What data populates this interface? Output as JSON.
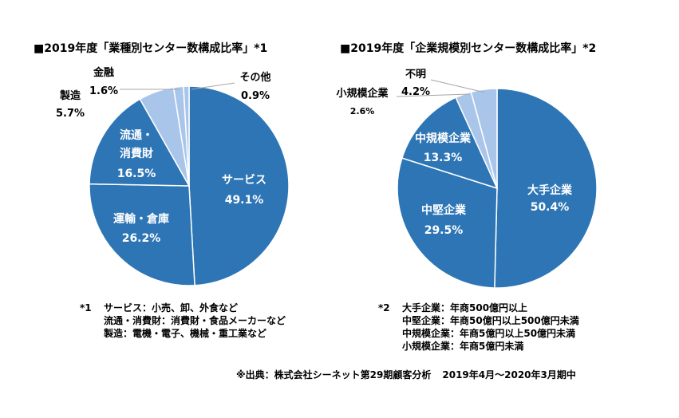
{
  "chart_data": [
    {
      "type": "pie",
      "title": "■2019年度「業種別センター数構成比率」*1",
      "slices": [
        {
          "label": "サービス",
          "value": 49.1,
          "display": "49.1%"
        },
        {
          "label": "運輸・倉庫",
          "value": 26.2,
          "display": "26.2%"
        },
        {
          "label": "流通・消費財",
          "label_lines": [
            "流通・",
            "消費財"
          ],
          "value": 16.5,
          "display": "16.5%"
        },
        {
          "label": "製造",
          "value": 5.7,
          "display": "5.7%"
        },
        {
          "label": "金融",
          "value": 1.6,
          "display": "1.6%"
        },
        {
          "label": "その他",
          "value": 0.9,
          "display": "0.9%"
        }
      ]
    },
    {
      "type": "pie",
      "title": "■2019年度「企業規模別センター数構成比率」*2",
      "slices": [
        {
          "label": "大手企業",
          "value": 50.4,
          "display": "50.4%"
        },
        {
          "label": "中堅企業",
          "value": 29.5,
          "display": "29.5%"
        },
        {
          "label": "中規模企業",
          "value": 13.3,
          "display": "13.3%"
        },
        {
          "label": "小規模企業",
          "value": 2.6,
          "display": "2.6%"
        },
        {
          "label": "不明",
          "value": 4.2,
          "display": "4.2%"
        }
      ]
    }
  ],
  "colors": {
    "dark_blue": "#2e75b6",
    "light_blue": "#a9c6ea",
    "edge": "#ffffff"
  },
  "notes": {
    "left": {
      "mark": "*1",
      "lines": [
        "サービス：小売、卸、外食など",
        "流通・消費財：消費財・食品メーカーなど",
        "製造：電機・電子、機械・重工業など"
      ]
    },
    "right": {
      "mark": "*2",
      "lines": [
        "大手企業：年商500億円以上",
        "中堅企業：年商50億円以上500億円未満",
        "中規模企業：年商5億円以上50億円未満",
        "小規模企業：年商5億円未満"
      ]
    }
  },
  "source": {
    "text": "※出典：株式会社シーネット第29期顧客分析",
    "period": "2019年4月～2020年3月期中"
  }
}
